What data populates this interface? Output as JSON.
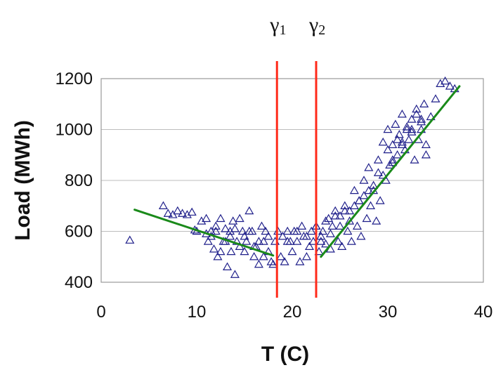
{
  "chart_data": {
    "type": "scatter",
    "xlabel": "T (C)",
    "ylabel": "Load (MWh)",
    "xlim": [
      0,
      40
    ],
    "ylim": [
      400,
      1200
    ],
    "x_ticks": [
      "0",
      "10",
      "20",
      "30",
      "40"
    ],
    "y_ticks": [
      "400",
      "600",
      "800",
      "1000",
      "1200"
    ],
    "grid": "horizontal",
    "marker": "open triangle",
    "colors": {
      "points": "#1f1f8a",
      "fit": "#1a8a1a",
      "thresholds": "#ff2a1a",
      "grid": "#bdbdbd"
    },
    "thresholds": [
      {
        "name": "γ",
        "sub": "1",
        "x": 18.4
      },
      {
        "name": "γ",
        "sub": "2",
        "x": 22.5
      }
    ],
    "fit_segments": [
      {
        "x": [
          3.5,
          18.0
        ],
        "y": [
          685,
          505
        ]
      },
      {
        "x": [
          23.0,
          37.5
        ],
        "y": [
          500,
          1170
        ]
      }
    ],
    "points": {
      "x": [
        3.0,
        6.5,
        7.0,
        7.5,
        8.0,
        8.5,
        9.0,
        9.5,
        9.8,
        10.5,
        11.0,
        11.2,
        11.5,
        11.8,
        12.0,
        12.2,
        12.5,
        12.8,
        13.0,
        13.2,
        13.5,
        13.6,
        13.8,
        14.0,
        14.2,
        14.5,
        14.8,
        15.0,
        15.2,
        15.5,
        15.8,
        16.0,
        16.2,
        16.5,
        16.8,
        17.0,
        17.2,
        17.5,
        17.8,
        18.0,
        18.2,
        18.5,
        18.8,
        19.0,
        19.2,
        19.5,
        19.8,
        20.0,
        20.2,
        20.5,
        20.8,
        21.0,
        21.2,
        21.5,
        21.8,
        22.0,
        22.2,
        22.5,
        22.8,
        23.0,
        23.2,
        23.5,
        23.8,
        24.0,
        24.2,
        24.5,
        24.8,
        25.0,
        25.2,
        25.5,
        25.8,
        26.0,
        26.2,
        26.5,
        26.8,
        27.0,
        27.2,
        27.5,
        27.8,
        28.0,
        28.2,
        28.5,
        28.8,
        29.0,
        29.2,
        29.5,
        29.8,
        30.0,
        30.2,
        30.5,
        30.8,
        31.0,
        31.2,
        31.5,
        31.8,
        32.0,
        32.2,
        32.5,
        32.8,
        33.0,
        33.2,
        33.5,
        33.8,
        34.0,
        34.5,
        35.0,
        35.5,
        36.0,
        36.5,
        37.0,
        11.5,
        12.5,
        13.5,
        14.5,
        15.5,
        16.5,
        17.5,
        19.5,
        20.5,
        21.5,
        22.5,
        23.5,
        24.5,
        25.5,
        26.5,
        27.5,
        28.5,
        29.5,
        30.5,
        31.5,
        32.5,
        33.5,
        30.0,
        31.0,
        32.0,
        33.0,
        34.0,
        29.0,
        30.5,
        31.5,
        32.5,
        33.5,
        28.0,
        27.0,
        26.0,
        25.0,
        24.0,
        23.0,
        13.0,
        14.0,
        15.0,
        16.0,
        17.0,
        12.0,
        11.0,
        10.0
      ],
      "y": [
        565,
        700,
        670,
        665,
        680,
        670,
        665,
        675,
        605,
        640,
        650,
        560,
        580,
        530,
        600,
        500,
        650,
        560,
        610,
        460,
        600,
        520,
        640,
        430,
        560,
        650,
        600,
        520,
        560,
        680,
        600,
        500,
        540,
        470,
        620,
        560,
        600,
        580,
        480,
        470,
        560,
        600,
        500,
        580,
        480,
        600,
        560,
        520,
        600,
        560,
        480,
        620,
        580,
        500,
        540,
        600,
        560,
        620,
        520,
        580,
        600,
        550,
        650,
        530,
        620,
        680,
        560,
        660,
        540,
        700,
        600,
        640,
        560,
        760,
        620,
        720,
        580,
        800,
        650,
        850,
        700,
        760,
        640,
        880,
        720,
        950,
        800,
        1000,
        860,
        940,
        1020,
        900,
        980,
        1060,
        920,
        1000,
        960,
        1040,
        880,
        1080,
        960,
        1000,
        1100,
        940,
        1050,
        1120,
        1180,
        1190,
        1170,
        1160,
        600,
        520,
        580,
        540,
        600,
        560,
        520,
        560,
        600,
        580,
        620,
        640,
        660,
        680,
        700,
        740,
        780,
        820,
        870,
        950,
        1000,
        1030,
        920,
        960,
        1010,
        1060,
        900,
        830,
        880,
        940,
        990,
        1040,
        760,
        720,
        680,
        620,
        590,
        560,
        560,
        610,
        580,
        540,
        500,
        620,
        590,
        600
      ]
    }
  }
}
